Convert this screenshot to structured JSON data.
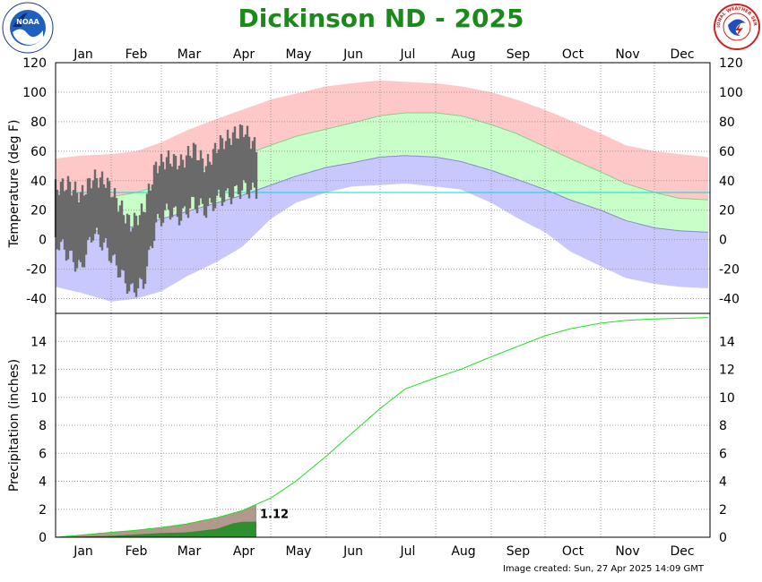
{
  "header": {
    "title": "Dickinson ND - 2025",
    "noaa_logo_text": "NOAA",
    "nws_logo_text": "NATIONAL WEATHER SERVICE"
  },
  "footer": {
    "created": "Image created: Sun, 27 Apr 2025 14:09 GMT"
  },
  "colors": {
    "record_high_band": "#ffc8c8",
    "normal_band": "#c8ffc8",
    "record_low_band": "#c8c8ff",
    "observed_bar": "#6a6a6a",
    "freezing_line": "#00dddd",
    "normal_precip_line": "#22dd22",
    "precip_actual": "#2f8f2f",
    "precip_normal_fill": "#a08070",
    "title": "#1a8a1a"
  },
  "chart_data": [
    {
      "type": "area",
      "panel": "temperature",
      "ylabel": "Temperature (deg F)",
      "ylim": [
        -50,
        120
      ],
      "yticks": [
        120,
        100,
        80,
        60,
        40,
        20,
        0,
        -20,
        -40
      ],
      "months": [
        "Jan",
        "Feb",
        "Mar",
        "Apr",
        "May",
        "Jun",
        "Jul",
        "Aug",
        "Sep",
        "Oct",
        "Nov",
        "Dec"
      ],
      "grid": true,
      "freezing_line": 32,
      "series": [
        {
          "key": "record_high",
          "x": [
            1,
            15,
            32,
            46,
            60,
            74,
            91,
            105,
            121,
            135,
            152,
            166,
            182,
            196,
            213,
            227,
            244,
            258,
            274,
            288,
            305,
            319,
            335,
            349,
            365
          ],
          "values": [
            55,
            57,
            58,
            60,
            66,
            74,
            82,
            88,
            95,
            99,
            104,
            106,
            108,
            107,
            106,
            104,
            100,
            95,
            88,
            81,
            72,
            64,
            60,
            58,
            56
          ]
        },
        {
          "key": "normal_high",
          "x": [
            1,
            15,
            32,
            46,
            60,
            74,
            91,
            105,
            121,
            135,
            152,
            166,
            182,
            196,
            213,
            227,
            244,
            258,
            274,
            288,
            305,
            319,
            335,
            349,
            365
          ],
          "values": [
            26,
            27,
            29,
            32,
            37,
            43,
            51,
            57,
            64,
            70,
            75,
            79,
            84,
            86,
            86,
            84,
            78,
            72,
            63,
            55,
            46,
            38,
            32,
            28,
            27
          ]
        },
        {
          "key": "normal_low",
          "x": [
            1,
            15,
            32,
            46,
            60,
            74,
            91,
            105,
            121,
            135,
            152,
            166,
            182,
            196,
            213,
            227,
            244,
            258,
            274,
            288,
            305,
            319,
            335,
            349,
            365
          ],
          "values": [
            5,
            5,
            7,
            9,
            14,
            19,
            25,
            30,
            37,
            43,
            49,
            52,
            56,
            57,
            56,
            53,
            47,
            41,
            34,
            27,
            20,
            13,
            8,
            6,
            5
          ]
        },
        {
          "key": "record_low",
          "x": [
            1,
            15,
            32,
            46,
            60,
            74,
            91,
            105,
            121,
            135,
            152,
            166,
            182,
            196,
            213,
            227,
            244,
            258,
            274,
            288,
            305,
            319,
            335,
            349,
            365
          ],
          "values": [
            -32,
            -36,
            -42,
            -40,
            -35,
            -25,
            -15,
            -5,
            14,
            25,
            32,
            36,
            37,
            38,
            36,
            34,
            25,
            15,
            5,
            -8,
            -18,
            -26,
            -30,
            -32,
            -33
          ]
        },
        {
          "key": "observed_high",
          "x": [
            1,
            8,
            15,
            22,
            29,
            36,
            43,
            50,
            57,
            64,
            71,
            78,
            85,
            92,
            99,
            106,
            113
          ],
          "values": [
            35,
            38,
            30,
            42,
            40,
            25,
            10,
            20,
            50,
            55,
            52,
            62,
            50,
            65,
            70,
            75,
            62
          ]
        },
        {
          "key": "observed_low",
          "x": [
            1,
            8,
            15,
            22,
            29,
            36,
            43,
            50,
            57,
            64,
            71,
            78,
            85,
            92,
            99,
            106,
            113
          ],
          "values": [
            0,
            -10,
            -20,
            5,
            -5,
            -20,
            -35,
            -30,
            10,
            20,
            15,
            25,
            20,
            28,
            30,
            35,
            32
          ]
        }
      ]
    },
    {
      "type": "line",
      "panel": "precipitation",
      "ylabel": "Precipitation (inches)",
      "ylim": [
        0,
        16
      ],
      "yticks": [
        14,
        12,
        10,
        8,
        6,
        4,
        2,
        0
      ],
      "months": [
        "Jan",
        "Feb",
        "Mar",
        "Apr",
        "May",
        "Jun",
        "Jul",
        "Aug",
        "Sep",
        "Oct",
        "Nov",
        "Dec"
      ],
      "grid": true,
      "series": [
        {
          "key": "normal_cumulative",
          "x": [
            1,
            15,
            32,
            46,
            60,
            74,
            91,
            105,
            121,
            135,
            152,
            166,
            182,
            196,
            213,
            227,
            244,
            258,
            274,
            288,
            305,
            319,
            335,
            349,
            365
          ],
          "values": [
            0,
            0.15,
            0.35,
            0.5,
            0.7,
            0.95,
            1.4,
            1.9,
            2.8,
            4.0,
            5.8,
            7.4,
            9.2,
            10.6,
            11.4,
            12.0,
            12.9,
            13.6,
            14.4,
            14.9,
            15.3,
            15.5,
            15.6,
            15.65,
            15.7
          ]
        },
        {
          "key": "actual_cumulative",
          "x": [
            1,
            15,
            32,
            46,
            60,
            74,
            91,
            100,
            105,
            113
          ],
          "values": [
            0,
            0.05,
            0.1,
            0.2,
            0.3,
            0.35,
            0.6,
            1.0,
            1.1,
            1.12
          ]
        }
      ],
      "annotation": {
        "label": "1.12",
        "x": 113,
        "y": 1.12
      }
    }
  ]
}
